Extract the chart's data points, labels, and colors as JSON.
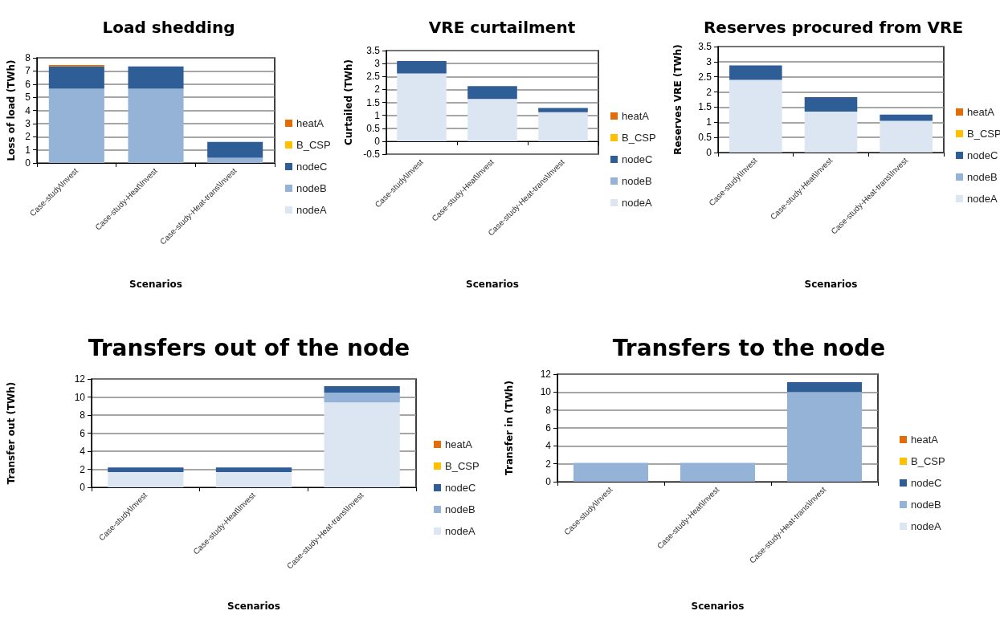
{
  "chart_data": [
    {
      "type": "bar",
      "title": "Load shedding",
      "xlabel": "Scenarios",
      "ylabel": "Loss of load (TWh)",
      "categories": [
        "Case-study\\Invest",
        "Case-study-Heat\\Invest",
        "Case-study-Heat-trans\\Invest"
      ],
      "stacked": true,
      "ylim": [
        0,
        8
      ],
      "yticks": [
        0,
        1,
        2,
        3,
        4,
        5,
        6,
        7,
        8
      ],
      "grid": "y",
      "legend": "right",
      "series": [
        {
          "name": "nodeA",
          "color": "#dce6f2",
          "values": [
            0,
            0,
            0
          ]
        },
        {
          "name": "nodeB",
          "color": "#95b3d7",
          "values": [
            5.65,
            5.65,
            0.4
          ]
        },
        {
          "name": "nodeC",
          "color": "#2f5d96",
          "values": [
            1.7,
            1.7,
            1.2
          ]
        },
        {
          "name": "B_CSP",
          "color": "#ffc000",
          "values": [
            0,
            0,
            0
          ]
        },
        {
          "name": "heatA",
          "color": "#e36c09",
          "values": [
            0.1,
            0,
            0
          ]
        }
      ]
    },
    {
      "type": "bar",
      "title": "VRE curtailment",
      "xlabel": "Scenarios",
      "ylabel": "Curtailed (TWh)",
      "categories": [
        "Case-study\\Invest",
        "Case-study-Heat\\Invest",
        "Case-study-Heat-trans\\Invest"
      ],
      "stacked": true,
      "ylim": [
        -0.5,
        3.5
      ],
      "yticks": [
        -0.5,
        0,
        0.5,
        1,
        1.5,
        2,
        2.5,
        3,
        3.5
      ],
      "grid": "y",
      "legend": "right",
      "series": [
        {
          "name": "nodeA",
          "color": "#dce6f2",
          "values": [
            2.62,
            1.63,
            1.12
          ]
        },
        {
          "name": "nodeB",
          "color": "#95b3d7",
          "values": [
            0,
            0,
            0
          ]
        },
        {
          "name": "nodeC",
          "color": "#2f5d96",
          "values": [
            0.48,
            0.5,
            0.16
          ]
        },
        {
          "name": "B_CSP",
          "color": "#ffc000",
          "values": [
            0,
            0,
            0
          ]
        },
        {
          "name": "heatA",
          "color": "#e36c09",
          "values": [
            0,
            0,
            0
          ]
        }
      ]
    },
    {
      "type": "bar",
      "title": "Reserves procured from VRE",
      "xlabel": "Scenarios",
      "ylabel": "Reserves VRE (TWh)",
      "categories": [
        "Case-study\\Invest",
        "Case-study-Heat\\Invest",
        "Case-study-Heat-trans\\Invest"
      ],
      "stacked": true,
      "ylim": [
        0,
        3.5
      ],
      "yticks": [
        0,
        0.5,
        1,
        1.5,
        2,
        2.5,
        3,
        3.5
      ],
      "grid": "y",
      "legend": "right",
      "series": [
        {
          "name": "nodeA",
          "color": "#dce6f2",
          "values": [
            2.4,
            1.35,
            1.05
          ]
        },
        {
          "name": "nodeB",
          "color": "#95b3d7",
          "values": [
            0,
            0,
            0
          ]
        },
        {
          "name": "nodeC",
          "color": "#2f5d96",
          "values": [
            0.48,
            0.48,
            0.2
          ]
        },
        {
          "name": "B_CSP",
          "color": "#ffc000",
          "values": [
            0,
            0,
            0
          ]
        },
        {
          "name": "heatA",
          "color": "#e36c09",
          "values": [
            0,
            0,
            0
          ]
        }
      ]
    },
    {
      "type": "bar",
      "title": "Transfers out of the node",
      "xlabel": "Scenarios",
      "ylabel": "Transfer out (TWh)",
      "categories": [
        "Case-study\\Invest",
        "Case-study-Heat\\Invest",
        "Case-study-Heat-trans\\Invest"
      ],
      "stacked": true,
      "ylim": [
        0,
        12
      ],
      "yticks": [
        0,
        2,
        4,
        6,
        8,
        10,
        12
      ],
      "grid": "y",
      "legend": "right",
      "series": [
        {
          "name": "nodeA",
          "color": "#dce6f2",
          "values": [
            1.7,
            1.7,
            9.4
          ]
        },
        {
          "name": "nodeB",
          "color": "#95b3d7",
          "values": [
            0,
            0,
            1.1
          ]
        },
        {
          "name": "nodeC",
          "color": "#2f5d96",
          "values": [
            0.5,
            0.5,
            0.7
          ]
        },
        {
          "name": "B_CSP",
          "color": "#ffc000",
          "values": [
            0,
            0,
            0
          ]
        },
        {
          "name": "heatA",
          "color": "#e36c09",
          "values": [
            0,
            0,
            0
          ]
        }
      ]
    },
    {
      "type": "bar",
      "title": "Transfers to the node",
      "xlabel": "Scenarios",
      "ylabel": "Transfer in (TWh)",
      "categories": [
        "Case-study\\Invest",
        "Case-study-Heat\\Invest",
        "Case-study-Heat-trans\\Invest"
      ],
      "stacked": true,
      "ylim": [
        0,
        12
      ],
      "yticks": [
        0,
        2,
        4,
        6,
        8,
        10,
        12
      ],
      "grid": "y",
      "legend": "right",
      "series": [
        {
          "name": "nodeA",
          "color": "#dce6f2",
          "values": [
            0,
            0,
            0
          ]
        },
        {
          "name": "nodeB",
          "color": "#95b3d7",
          "values": [
            2.1,
            2.1,
            10
          ]
        },
        {
          "name": "nodeC",
          "color": "#2f5d96",
          "values": [
            0,
            0,
            1.1
          ]
        },
        {
          "name": "B_CSP",
          "color": "#ffc000",
          "values": [
            0,
            0,
            0
          ]
        },
        {
          "name": "heatA",
          "color": "#e36c09",
          "values": [
            0,
            0,
            0
          ]
        }
      ]
    }
  ]
}
